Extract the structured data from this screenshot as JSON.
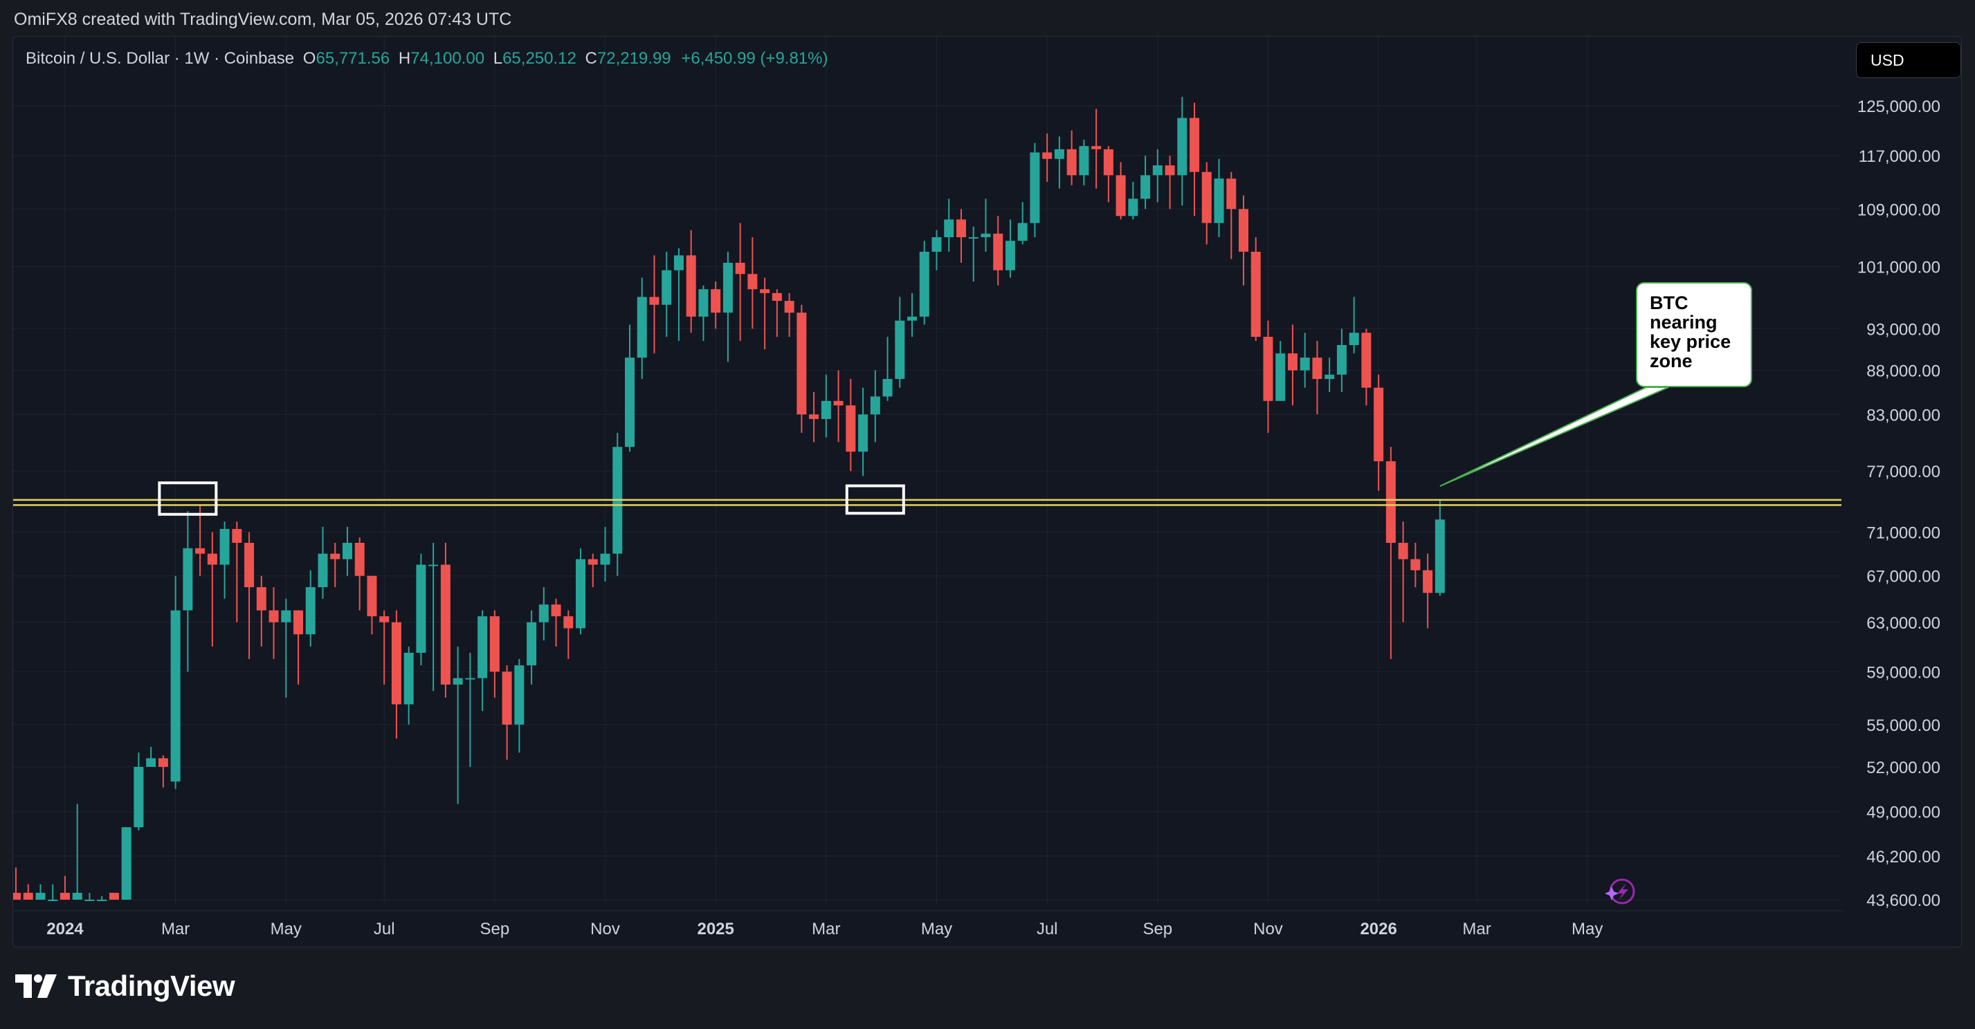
{
  "attribution": "OmiFX8 created with TradingView.com, Mar 05, 2026 07:43 UTC",
  "legend": {
    "symbol": "Bitcoin / U.S. Dollar · 1W · Coinbase",
    "o_label": "O",
    "o_value": "65,771.56",
    "h_label": "H",
    "h_value": "74,100.00",
    "l_label": "L",
    "l_value": "65,250.12",
    "c_label": "C",
    "c_value": "72,219.99",
    "change": "+6,450.99 (+9.81%)"
  },
  "currency": "USD",
  "callout": {
    "text": "BTC nearing key price zone"
  },
  "logo_text": "TradingView",
  "colors": {
    "up": "#26a69a",
    "down": "#ef5350",
    "background": "#131722",
    "grid": "#1f2431",
    "axis_text": "#d1d4dc",
    "level_line": "#e6d35a",
    "callout_border": "#4caf50"
  },
  "chart_data": {
    "type": "candlestick",
    "interval": "1W",
    "y_scale": "log",
    "y_ticks": [
      {
        "v": 125000,
        "label": "125,000.00"
      },
      {
        "v": 117000,
        "label": "117,000.00"
      },
      {
        "v": 109000,
        "label": "109,000.00"
      },
      {
        "v": 101000,
        "label": "101,000.00"
      },
      {
        "v": 93000,
        "label": "93,000.00"
      },
      {
        "v": 88000,
        "label": "88,000.00"
      },
      {
        "v": 83000,
        "label": "83,000.00"
      },
      {
        "v": 77000,
        "label": "77,000.00"
      },
      {
        "v": 71000,
        "label": "71,000.00"
      },
      {
        "v": 67000,
        "label": "67,000.00"
      },
      {
        "v": 63000,
        "label": "63,000.00"
      },
      {
        "v": 59000,
        "label": "59,000.00"
      },
      {
        "v": 55000,
        "label": "55,000.00"
      },
      {
        "v": 52000,
        "label": "52,000.00"
      },
      {
        "v": 49000,
        "label": "49,000.00"
      },
      {
        "v": 46200,
        "label": "46,200.00"
      },
      {
        "v": 43600,
        "label": "43,600.00"
      }
    ],
    "x_ticks": [
      {
        "bar": 4,
        "label": "2024",
        "bold": true
      },
      {
        "bar": 13,
        "label": "Mar",
        "bold": false
      },
      {
        "bar": 22,
        "label": "May",
        "bold": false
      },
      {
        "bar": 30,
        "label": "Jul",
        "bold": false
      },
      {
        "bar": 39,
        "label": "Sep",
        "bold": false
      },
      {
        "bar": 48,
        "label": "Nov",
        "bold": false
      },
      {
        "bar": 57,
        "label": "2025",
        "bold": true
      },
      {
        "bar": 66,
        "label": "Mar",
        "bold": false
      },
      {
        "bar": 75,
        "label": "May",
        "bold": false
      },
      {
        "bar": 84,
        "label": "Jul",
        "bold": false
      },
      {
        "bar": 93,
        "label": "Sep",
        "bold": false
      },
      {
        "bar": 102,
        "label": "Nov",
        "bold": false
      },
      {
        "bar": 111,
        "label": "2026",
        "bold": true
      },
      {
        "bar": 119,
        "label": "Mar",
        "bold": false
      },
      {
        "bar": 128,
        "label": "May",
        "bold": false
      }
    ],
    "levels": [
      74100,
      73600
    ],
    "highlight_boxes": [
      {
        "bar": 14,
        "top": 75800,
        "bottom": 72700
      },
      {
        "bar": 70,
        "top": 75500,
        "bottom": 72800
      }
    ],
    "candles": [
      [
        44000,
        43600,
        45500,
        43600
      ],
      [
        44000,
        43600,
        44500,
        43600
      ],
      [
        43600,
        44000,
        44500,
        43600
      ],
      [
        43600,
        43600,
        44500,
        43600
      ],
      [
        44000,
        43600,
        45000,
        43600
      ],
      [
        43600,
        44000,
        49500,
        43600
      ],
      [
        43600,
        43600,
        44000,
        43600
      ],
      [
        43600,
        43600,
        43800,
        43600
      ],
      [
        44000,
        43600,
        44000,
        43600
      ],
      [
        43600,
        48000,
        48000,
        43600
      ],
      [
        48000,
        52000,
        53000,
        47800
      ],
      [
        52000,
        52600,
        53400,
        52000
      ],
      [
        52600,
        52000,
        52800,
        50600
      ],
      [
        51000,
        64000,
        67000,
        50500
      ],
      [
        64000,
        69500,
        73000,
        59000
      ],
      [
        69500,
        69000,
        73500,
        67000
      ],
      [
        69000,
        68000,
        71000,
        61000
      ],
      [
        68000,
        71300,
        72000,
        65000
      ],
      [
        71300,
        70000,
        72000,
        63000
      ],
      [
        70000,
        66000,
        71000,
        60000
      ],
      [
        66000,
        64000,
        67000,
        61000
      ],
      [
        64000,
        63000,
        66000,
        60000
      ],
      [
        63000,
        64000,
        65000,
        57000
      ],
      [
        64000,
        62000,
        64000,
        58000
      ],
      [
        62000,
        66000,
        67500,
        61000
      ],
      [
        66000,
        69000,
        71500,
        65000
      ],
      [
        69000,
        68500,
        70000,
        66000
      ],
      [
        68500,
        70000,
        71500,
        67000
      ],
      [
        70000,
        67000,
        70500,
        64000
      ],
      [
        67000,
        63500,
        67000,
        62000
      ],
      [
        63500,
        63000,
        64000,
        58000
      ],
      [
        63000,
        56500,
        64000,
        54000
      ],
      [
        56500,
        60500,
        61000,
        55000
      ],
      [
        60500,
        68000,
        69000,
        59500
      ],
      [
        68000,
        68000,
        70000,
        57500
      ],
      [
        68000,
        58000,
        70000,
        57000
      ],
      [
        58000,
        58500,
        61000,
        49500
      ],
      [
        58500,
        58500,
        60500,
        52000
      ],
      [
        58500,
        63500,
        64000,
        56000
      ],
      [
        63500,
        59000,
        64000,
        57000
      ],
      [
        59000,
        55000,
        59500,
        52500
      ],
      [
        55000,
        59500,
        60000,
        53000
      ],
      [
        59500,
        63000,
        64000,
        58000
      ],
      [
        63000,
        64500,
        66000,
        61500
      ],
      [
        64500,
        63500,
        65000,
        61000
      ],
      [
        63500,
        62500,
        64000,
        60000
      ],
      [
        62500,
        68500,
        69500,
        62000
      ],
      [
        68500,
        68000,
        69000,
        66000
      ],
      [
        68000,
        69000,
        71500,
        66500
      ],
      [
        69000,
        79500,
        81000,
        67000
      ],
      [
        79500,
        89500,
        93500,
        79000
      ],
      [
        89500,
        97000,
        99500,
        87000
      ],
      [
        97000,
        96000,
        102500,
        90000
      ],
      [
        96000,
        100500,
        103000,
        92000
      ],
      [
        100500,
        102500,
        103500,
        91500
      ],
      [
        102500,
        94500,
        106000,
        92500
      ],
      [
        94500,
        98000,
        98500,
        91500
      ],
      [
        98000,
        95000,
        99000,
        93000
      ],
      [
        95000,
        101500,
        103000,
        89000
      ],
      [
        101500,
        100000,
        107000,
        91500
      ],
      [
        100000,
        98000,
        105000,
        93000
      ],
      [
        98000,
        97500,
        99500,
        90500
      ],
      [
        97500,
        96500,
        98000,
        92000
      ],
      [
        96500,
        95000,
        97500,
        92000
      ],
      [
        95000,
        83000,
        96000,
        81000
      ],
      [
        83000,
        82500,
        85500,
        80000
      ],
      [
        82500,
        84500,
        87500,
        80500
      ],
      [
        84500,
        84000,
        88000,
        80000
      ],
      [
        84000,
        79000,
        87000,
        77000
      ],
      [
        79000,
        83000,
        86000,
        76500
      ],
      [
        83000,
        85000,
        88000,
        80000
      ],
      [
        85000,
        87000,
        92000,
        84500
      ],
      [
        87000,
        94000,
        97000,
        86000
      ],
      [
        94000,
        94500,
        97500,
        92000
      ],
      [
        94500,
        103000,
        104500,
        93500
      ],
      [
        103000,
        105000,
        106000,
        100500
      ],
      [
        105000,
        107500,
        110500,
        103000
      ],
      [
        107500,
        105000,
        109000,
        101500
      ],
      [
        105000,
        105000,
        106500,
        99000
      ],
      [
        105000,
        105500,
        110500,
        103000
      ],
      [
        105500,
        100500,
        108000,
        98500
      ],
      [
        100500,
        104500,
        107500,
        99500
      ],
      [
        104500,
        107000,
        110000,
        104000
      ],
      [
        107000,
        117500,
        119000,
        105000
      ],
      [
        117500,
        116500,
        120500,
        113000
      ],
      [
        116500,
        118000,
        120000,
        112000
      ],
      [
        118000,
        114000,
        121000,
        112500
      ],
      [
        114000,
        118500,
        119500,
        112500
      ],
      [
        118500,
        118000,
        124500,
        112000
      ],
      [
        118000,
        114000,
        118500,
        110000
      ],
      [
        114000,
        108000,
        116000,
        107500
      ],
      [
        108000,
        110500,
        113000,
        107500
      ],
      [
        110500,
        114000,
        117000,
        109000
      ],
      [
        114000,
        115500,
        118000,
        110000
      ],
      [
        115500,
        114000,
        117000,
        109000
      ],
      [
        114000,
        123000,
        126500,
        109500
      ],
      [
        123000,
        114500,
        125500,
        108000
      ],
      [
        114500,
        107000,
        116000,
        104000
      ],
      [
        107000,
        113500,
        116500,
        105000
      ],
      [
        113500,
        109000,
        114500,
        102000
      ],
      [
        109000,
        103000,
        111000,
        98500
      ],
      [
        103000,
        92000,
        105000,
        91500
      ],
      [
        92000,
        84500,
        94000,
        81000
      ],
      [
        84500,
        90000,
        91500,
        87000
      ],
      [
        90000,
        88000,
        93500,
        84000
      ],
      [
        88000,
        89500,
        92500,
        86000
      ],
      [
        89500,
        87000,
        91500,
        83000
      ],
      [
        87000,
        87500,
        89500,
        85500
      ],
      [
        87500,
        91000,
        93000,
        85500
      ],
      [
        91000,
        92500,
        97000,
        90000
      ],
      [
        92500,
        86000,
        93000,
        84000
      ],
      [
        86000,
        78000,
        87500,
        75000
      ],
      [
        78000,
        70000,
        79500,
        60000
      ],
      [
        70000,
        68500,
        72000,
        63000
      ],
      [
        68500,
        67500,
        70000,
        66000
      ],
      [
        67500,
        65500,
        69000,
        62500
      ],
      [
        65500,
        72200,
        74100,
        65250
      ]
    ]
  }
}
